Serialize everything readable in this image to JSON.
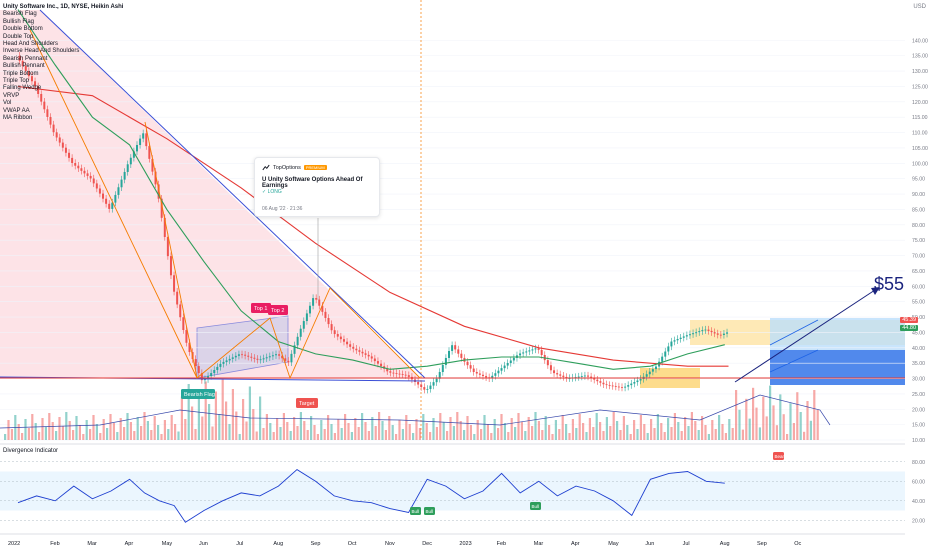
{
  "legend": {
    "title": "Unity Software Inc., 1D, NYSE, Heikin Ashi",
    "items": [
      "Bearish Flag",
      "Bullish Flag",
      "Double Bottom",
      "Double Top",
      "Head And Shoulders",
      "Inverse Head And Shoulders",
      "Bearish Pennant",
      "Bullish Pennant",
      "Triple Bottom",
      "Triple Top",
      "Falling Wedge",
      "VRVP",
      "Vol",
      "VWAP AA",
      "MA Ribbon"
    ]
  },
  "currency": "USD",
  "idea_card": {
    "author": "TopOptions",
    "badge": "PREMIUM",
    "headline": "U Unity Software Options Ahead Of Earnings",
    "direction": "LONG",
    "date": "06 Aug '22 · 21:36"
  },
  "annotations": {
    "top1": "Top 1",
    "top2": "Top 2",
    "bearish_flag": "Bearish Flag",
    "target": "Target",
    "target_price": "$55",
    "bull": "Bull",
    "bear": "Bear"
  },
  "price_tags": {
    "last": "45.39",
    "ma": "44.80"
  },
  "colors": {
    "up": "#26a69a",
    "down": "#ef5350",
    "ma_red": "#e53935",
    "ma_green": "#2e9e5b",
    "trend_blue": "#3b4fd6",
    "pattern_orange": "#f57c00",
    "divergence_line": "#1e3fd0",
    "arrow_navy": "#1a237e"
  },
  "chart_data": {
    "type": "line",
    "x_labels": [
      "2022",
      "Feb",
      "Mar",
      "Apr",
      "May",
      "Jun",
      "Jul",
      "Aug",
      "Sep",
      "Oct",
      "Nov",
      "Dec",
      "2023",
      "Feb",
      "Mar",
      "Apr",
      "May",
      "Jun",
      "Jul",
      "Aug",
      "Sep",
      "Oc"
    ],
    "price_ticks": [
      10,
      15,
      20,
      25,
      30,
      35,
      40,
      45,
      50,
      55,
      60,
      65,
      70,
      75,
      80,
      85,
      90,
      95,
      100,
      105,
      110,
      115,
      120,
      125,
      130,
      135,
      140
    ],
    "y_range": [
      10,
      145
    ],
    "price_path": [
      [
        0,
        135
      ],
      [
        0.5,
        125
      ],
      [
        1,
        110
      ],
      [
        1.5,
        100
      ],
      [
        2,
        95
      ],
      [
        2.5,
        85
      ],
      [
        3,
        100
      ],
      [
        3.4,
        110
      ],
      [
        3.8,
        90
      ],
      [
        4.2,
        60
      ],
      [
        4.6,
        40
      ],
      [
        5,
        29
      ],
      [
        5.5,
        35
      ],
      [
        6,
        38
      ],
      [
        6.5,
        36
      ],
      [
        7,
        38
      ],
      [
        7.3,
        35
      ],
      [
        7.6,
        45
      ],
      [
        8,
        57
      ],
      [
        8.5,
        45
      ],
      [
        9,
        40
      ],
      [
        9.5,
        37
      ],
      [
        10,
        32
      ],
      [
        10.5,
        31
      ],
      [
        11,
        26
      ],
      [
        11.3,
        30
      ],
      [
        11.7,
        41
      ],
      [
        12,
        36
      ],
      [
        12.3,
        32
      ],
      [
        12.7,
        30
      ],
      [
        13,
        33
      ],
      [
        13.5,
        38
      ],
      [
        14,
        40
      ],
      [
        14.4,
        32
      ],
      [
        14.8,
        30
      ],
      [
        15.3,
        31
      ],
      [
        15.8,
        28
      ],
      [
        16.3,
        27
      ],
      [
        16.8,
        30
      ],
      [
        17.2,
        34
      ],
      [
        17.6,
        42
      ],
      [
        18,
        44
      ],
      [
        18.5,
        46
      ],
      [
        18.9,
        44
      ],
      [
        19.1,
        45
      ]
    ],
    "ma_long_red": [
      [
        0,
        125
      ],
      [
        2,
        122
      ],
      [
        4,
        108
      ],
      [
        6,
        92
      ],
      [
        8,
        74
      ],
      [
        10,
        58
      ],
      [
        12,
        47
      ],
      [
        14,
        40
      ],
      [
        16,
        36
      ],
      [
        18,
        34
      ],
      [
        19.1,
        34
      ]
    ],
    "ma_green": [
      [
        0,
        150
      ],
      [
        1,
        132
      ],
      [
        2,
        115
      ],
      [
        3,
        106
      ],
      [
        4,
        85
      ],
      [
        5,
        68
      ],
      [
        6,
        52
      ],
      [
        7,
        42
      ],
      [
        8,
        38
      ],
      [
        9,
        36
      ],
      [
        10,
        33
      ],
      [
        11,
        34
      ],
      [
        12,
        36
      ],
      [
        13,
        37
      ],
      [
        14,
        37
      ],
      [
        15,
        35
      ],
      [
        16,
        33
      ],
      [
        17,
        34
      ],
      [
        18,
        38
      ],
      [
        19,
        41
      ]
    ],
    "divergence_indicator": {
      "title": "Divergence Indicator",
      "ticks": [
        20,
        40,
        60,
        80
      ],
      "y_range": [
        10,
        90
      ],
      "points": [
        [
          0,
          38
        ],
        [
          0.5,
          45
        ],
        [
          1,
          40
        ],
        [
          1.5,
          55
        ],
        [
          2,
          42
        ],
        [
          2.5,
          50
        ],
        [
          3,
          62
        ],
        [
          3.4,
          48
        ],
        [
          3.8,
          40
        ],
        [
          4.2,
          35
        ],
        [
          4.5,
          18
        ],
        [
          5,
          30
        ],
        [
          5.5,
          40
        ],
        [
          6,
          48
        ],
        [
          6.5,
          45
        ],
        [
          7,
          55
        ],
        [
          7.5,
          72
        ],
        [
          8,
          60
        ],
        [
          8.5,
          45
        ],
        [
          9,
          40
        ],
        [
          9.5,
          38
        ],
        [
          10,
          32
        ],
        [
          10.5,
          28
        ],
        [
          11,
          62
        ],
        [
          11.5,
          55
        ],
        [
          12,
          42
        ],
        [
          12.5,
          50
        ],
        [
          13,
          68
        ],
        [
          13.5,
          48
        ],
        [
          14,
          60
        ],
        [
          14.5,
          45
        ],
        [
          15,
          55
        ],
        [
          15.5,
          50
        ],
        [
          16,
          40
        ],
        [
          16.5,
          25
        ],
        [
          17,
          62
        ],
        [
          17.5,
          68
        ],
        [
          18,
          70
        ],
        [
          18.5,
          60
        ],
        [
          19,
          58
        ]
      ]
    }
  }
}
